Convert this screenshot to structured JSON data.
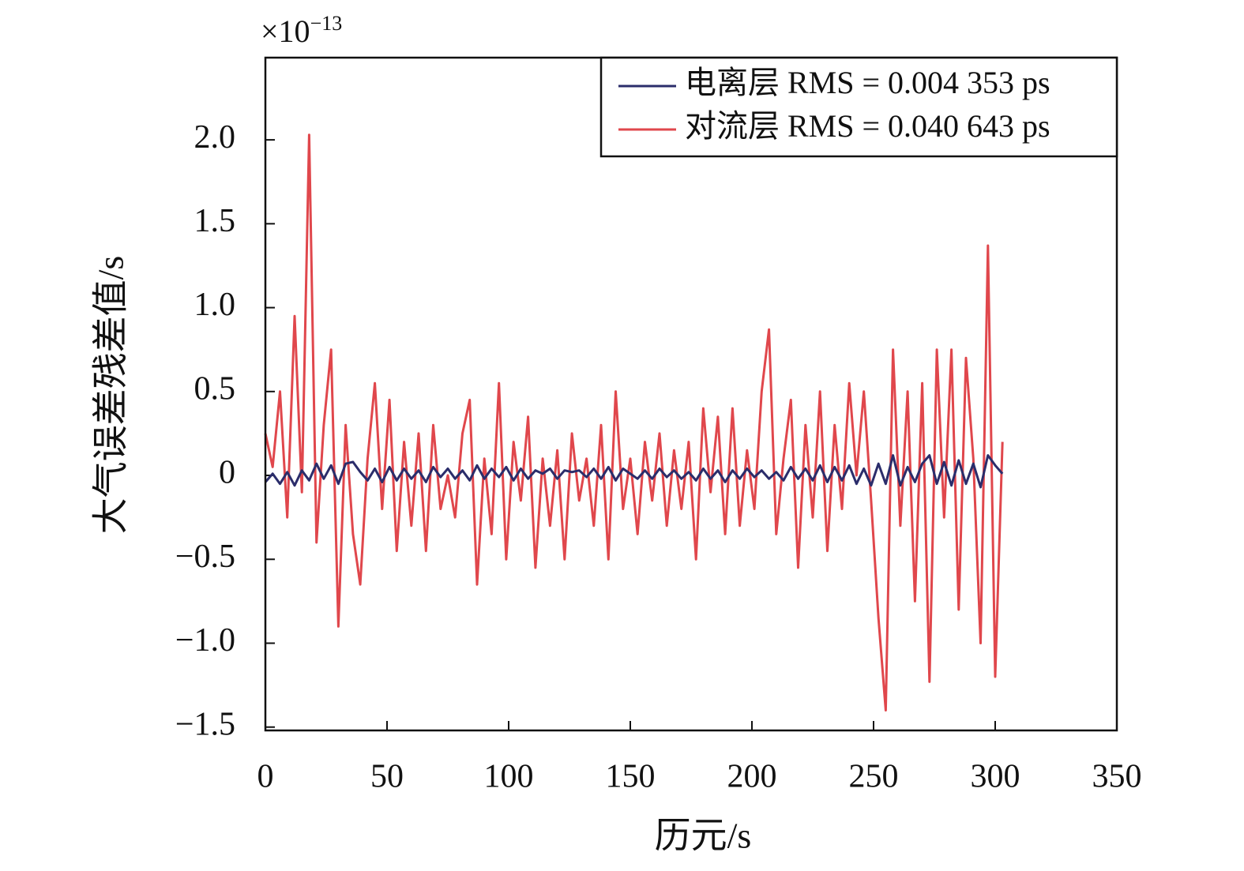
{
  "chart_data": {
    "type": "line",
    "xlabel": "历元/s",
    "ylabel": "大气误差残差值/s",
    "y_offset_base": "×10",
    "y_offset_exponent": "−13",
    "xlim": [
      0,
      350
    ],
    "xticks": [
      0,
      50,
      100,
      150,
      200,
      250,
      300,
      350
    ],
    "ylim": [
      -1.52,
      2.49
    ],
    "yticks": [
      {
        "value": -1.5,
        "label": "−1.5"
      },
      {
        "value": -1,
        "label": "−1.0"
      },
      {
        "value": -0.5,
        "label": "−0.5"
      },
      0,
      0.5,
      {
        "value": 1,
        "label": "1.0"
      },
      1.5,
      {
        "value": 2,
        "label": "2.0"
      }
    ],
    "legend": "upper right",
    "x": [
      0,
      3,
      6,
      9,
      12,
      15,
      18,
      21,
      24,
      27,
      30,
      33,
      36,
      39,
      42,
      45,
      48,
      51,
      54,
      57,
      60,
      63,
      66,
      69,
      72,
      75,
      78,
      81,
      84,
      87,
      90,
      93,
      96,
      99,
      102,
      105,
      108,
      111,
      114,
      117,
      120,
      123,
      126,
      129,
      132,
      135,
      138,
      141,
      144,
      147,
      150,
      153,
      156,
      159,
      162,
      165,
      168,
      171,
      174,
      177,
      180,
      183,
      186,
      189,
      192,
      195,
      198,
      201,
      204,
      207,
      210,
      213,
      216,
      219,
      222,
      225,
      228,
      231,
      234,
      237,
      240,
      243,
      246,
      249,
      252,
      255,
      258,
      261,
      264,
      267,
      270,
      273,
      276,
      279,
      282,
      285,
      288,
      291,
      294,
      297,
      300,
      303
    ],
    "series": [
      {
        "name": "电离层 RMS = 0.004 353 ps",
        "color": "#2b2d6b",
        "values": [
          -0.04,
          0.01,
          -0.05,
          0.02,
          -0.06,
          0.03,
          -0.03,
          0.07,
          -0.02,
          0.06,
          -0.05,
          0.07,
          0.08,
          0.02,
          -0.03,
          0.04,
          -0.04,
          0.05,
          -0.03,
          0.04,
          -0.02,
          0.03,
          -0.04,
          0.05,
          -0.01,
          0.04,
          -0.02,
          0.03,
          -0.03,
          0.06,
          -0.02,
          0.04,
          -0.01,
          0.05,
          -0.03,
          0.04,
          -0.02,
          0.03,
          0.01,
          0.04,
          -0.02,
          0.03,
          0.02,
          0.03,
          -0.01,
          0.04,
          -0.02,
          0.05,
          -0.03,
          0.04,
          0.01,
          -0.02,
          0.03,
          -0.02,
          0.04,
          -0.01,
          0.03,
          -0.02,
          0.02,
          -0.03,
          0.04,
          -0.02,
          0.03,
          -0.04,
          0.03,
          -0.02,
          0.04,
          -0.01,
          0.03,
          -0.02,
          0.02,
          -0.03,
          0.05,
          -0.02,
          0.04,
          -0.03,
          0.06,
          -0.04,
          0.05,
          -0.03,
          0.06,
          -0.05,
          0.04,
          -0.06,
          0.07,
          -0.05,
          0.12,
          -0.06,
          0.05,
          -0.04,
          0.07,
          0.12,
          -0.05,
          0.08,
          -0.06,
          0.09,
          -0.05,
          0.07,
          -0.07,
          0.12,
          0.06,
          0.01
        ]
      },
      {
        "name": "对流层 RMS = 0.040 643 ps",
        "color": "#e0474c",
        "values": [
          0.25,
          0.05,
          0.5,
          -0.25,
          0.95,
          -0.1,
          2.03,
          -0.4,
          0.3,
          0.75,
          -0.9,
          0.3,
          -0.35,
          -0.65,
          0.1,
          0.55,
          -0.2,
          0.45,
          -0.45,
          0.2,
          -0.3,
          0.25,
          -0.45,
          0.3,
          -0.2,
          0.0,
          -0.25,
          0.25,
          0.45,
          -0.65,
          0.1,
          -0.35,
          0.55,
          -0.5,
          0.2,
          -0.15,
          0.35,
          -0.55,
          0.1,
          -0.3,
          0.15,
          -0.5,
          0.25,
          -0.15,
          0.1,
          -0.3,
          0.3,
          -0.5,
          0.5,
          -0.2,
          0.1,
          -0.35,
          0.2,
          -0.15,
          0.25,
          -0.3,
          0.15,
          -0.2,
          0.2,
          -0.5,
          0.4,
          -0.1,
          0.35,
          -0.35,
          0.4,
          -0.3,
          0.15,
          -0.2,
          0.5,
          0.87,
          -0.35,
          0.1,
          0.45,
          -0.55,
          0.3,
          -0.25,
          0.5,
          -0.45,
          0.3,
          -0.2,
          0.55,
          0.0,
          0.5,
          -0.15,
          -0.85,
          -1.4,
          0.75,
          -0.3,
          0.5,
          -0.75,
          0.55,
          -1.23,
          0.75,
          -0.25,
          0.75,
          -0.8,
          0.7,
          0.1,
          -1.0,
          1.37,
          -1.2,
          0.2
        ]
      }
    ]
  }
}
